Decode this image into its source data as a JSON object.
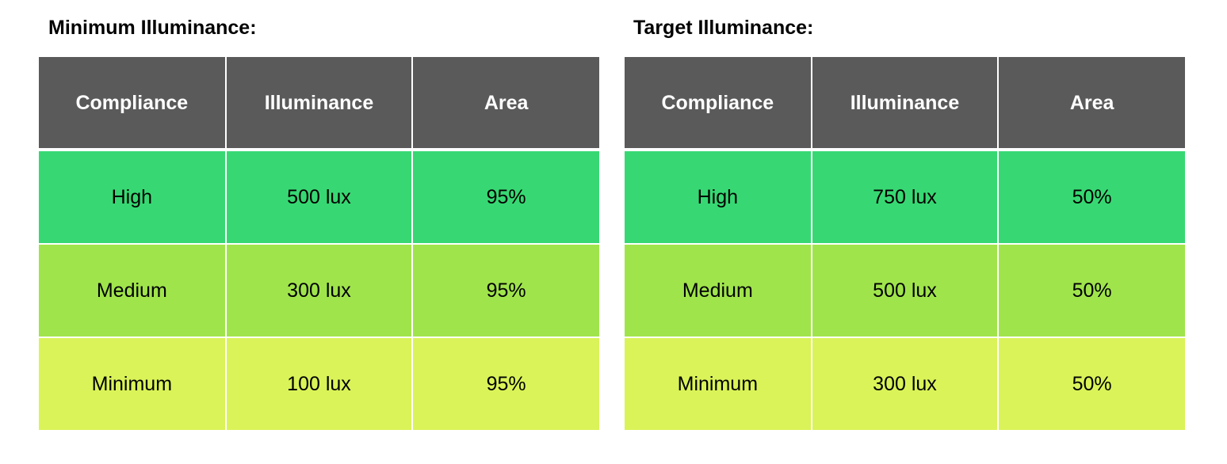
{
  "tables": [
    {
      "title": "Minimum Illuminance:",
      "headers": [
        "Compliance",
        "Illuminance",
        "Area"
      ],
      "rows": [
        {
          "compliance": "High",
          "illuminance": "500 lux",
          "area": "95%"
        },
        {
          "compliance": "Medium",
          "illuminance": "300 lux",
          "area": "95%"
        },
        {
          "compliance": "Minimum",
          "illuminance": "100 lux",
          "area": "95%"
        }
      ]
    },
    {
      "title": "Target Illuminance:",
      "headers": [
        "Compliance",
        "Illuminance",
        "Area"
      ],
      "rows": [
        {
          "compliance": "High",
          "illuminance": "750 lux",
          "area": "50%"
        },
        {
          "compliance": "Medium",
          "illuminance": "500 lux",
          "area": "50%"
        },
        {
          "compliance": "Minimum",
          "illuminance": "300 lux",
          "area": "50%"
        }
      ]
    }
  ],
  "colors": {
    "header_bg": "#5a5a5a",
    "header_text": "#ffffff",
    "row_high": "#37d873",
    "row_medium": "#a0e44c",
    "row_minimum": "#daf358",
    "grid_line": "#ffffff"
  }
}
